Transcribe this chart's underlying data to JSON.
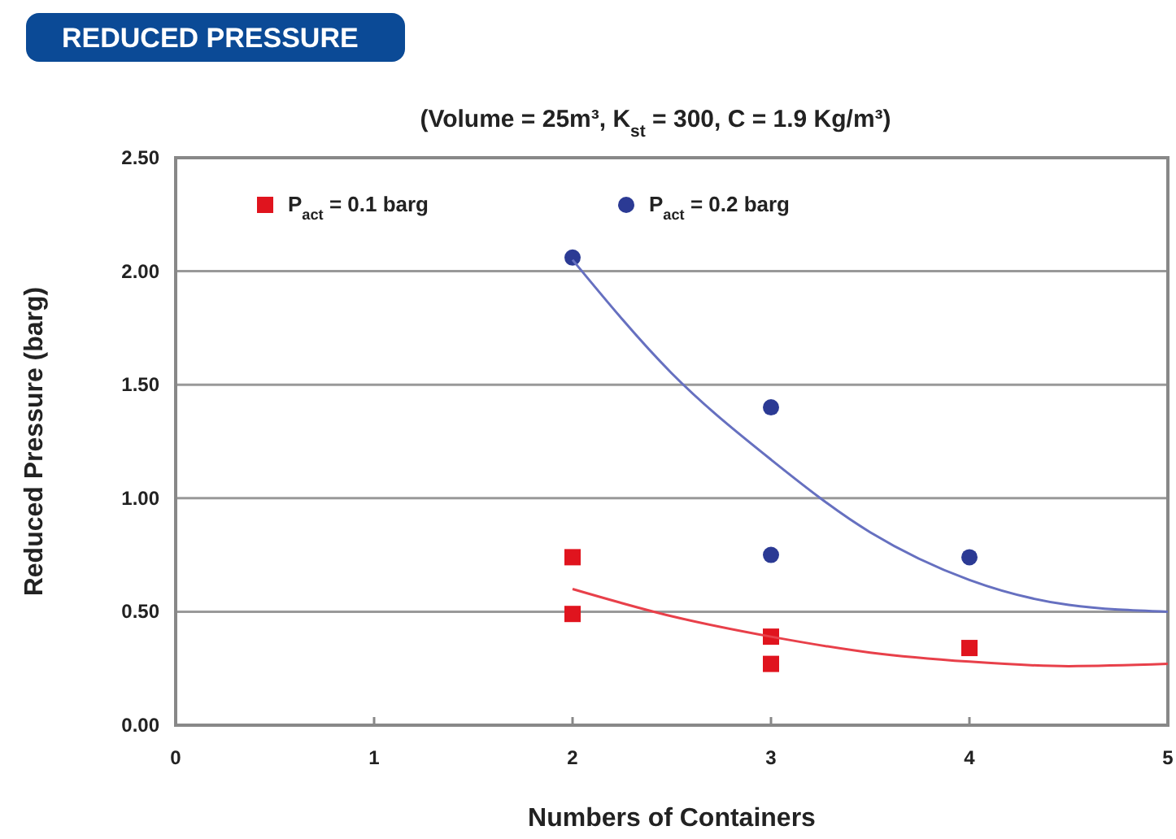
{
  "chart_data": {
    "type": "scatter",
    "title": "REDUCED PRESSURE",
    "subtitle": "(Volume = 25m³, K$_{st}$ = 300, C = 1.9 Kg/m³)",
    "xlabel": "Numbers of Containers",
    "ylabel": "Reduced Pressure (barg)",
    "xlim": [
      0,
      5
    ],
    "xticks": [
      0,
      1,
      2,
      3,
      4,
      5
    ],
    "ylim": [
      0,
      2.5
    ],
    "yticks": [
      {
        "value": 0,
        "label": "0.00"
      },
      {
        "value": 0.5,
        "label": "0.50"
      },
      {
        "value": 1,
        "label": "1.00"
      },
      {
        "value": 1.5,
        "label": "1.50"
      },
      {
        "value": 2,
        "label": "2.00"
      },
      {
        "value": 2.5,
        "label": "2.50"
      }
    ],
    "grid": "y",
    "legend": "top left",
    "series": [
      {
        "name": "P$_{act}$ = 0.1 barg",
        "color": "#e0141e",
        "marker": "square",
        "x": [
          2,
          2,
          3,
          3,
          4
        ],
        "values": [
          0.74,
          0.49,
          0.39,
          0.27,
          0.34
        ]
      },
      {
        "name": "P$_{act}$ = 0.2 barg",
        "color": "#2b3a94",
        "marker": "circle",
        "x": [
          2,
          3,
          3,
          4
        ],
        "values": [
          2.06,
          1.4,
          0.75,
          0.74
        ]
      },
      {
        "type": "line",
        "color": "#e8404a",
        "marker": "none",
        "x": [
          2,
          2.5,
          3,
          3.5,
          4,
          4.5,
          5
        ],
        "values": [
          0.6,
          0.48,
          0.39,
          0.32,
          0.28,
          0.26,
          0.27
        ]
      },
      {
        "type": "line",
        "color": "#6670c0",
        "marker": "none",
        "x": [
          2,
          2.5,
          3,
          3.5,
          4,
          4.5,
          5
        ],
        "values": [
          2.05,
          1.55,
          1.17,
          0.85,
          0.64,
          0.53,
          0.5
        ]
      }
    ]
  }
}
